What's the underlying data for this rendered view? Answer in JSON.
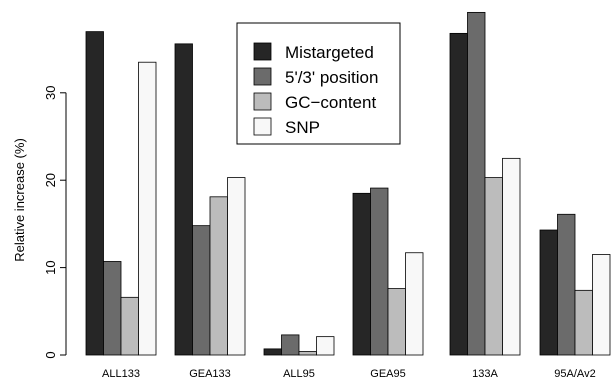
{
  "chart_data": {
    "type": "bar",
    "title": "",
    "xlabel": "",
    "ylabel": "Relative increase (%)",
    "ylim": [
      0,
      38.5
    ],
    "yticks": [
      0,
      10,
      20,
      30
    ],
    "categories": [
      "ALL133",
      "GEA133",
      "ALL95",
      "GEA95",
      "133A",
      "95A/Av2"
    ],
    "series": [
      {
        "name": "Mistargeted",
        "color": "#262626",
        "values": [
          37.0,
          35.6,
          0.7,
          18.5,
          36.8,
          14.3
        ]
      },
      {
        "name": "5'/3' position",
        "color": "#6b6b6b",
        "values": [
          10.7,
          14.8,
          2.3,
          19.1,
          39.2,
          16.1
        ]
      },
      {
        "name": "GC−content",
        "color": "#bcbcbc",
        "values": [
          6.6,
          18.1,
          0.4,
          7.6,
          20.3,
          7.4
        ]
      },
      {
        "name": "SNP",
        "color": "#f8f8f8",
        "values": [
          33.5,
          20.3,
          2.1,
          11.7,
          22.5,
          11.5
        ]
      }
    ],
    "legend_position": "top-center",
    "grid": false
  }
}
